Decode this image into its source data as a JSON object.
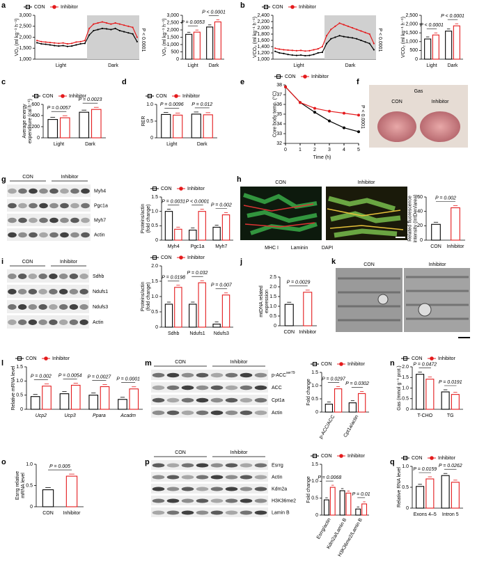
{
  "chart_data": [
    {
      "type": "line",
      "legend": true,
      "ylabel": "VO₂ (ml kg⁻¹ h⁻¹)",
      "x_labels": [
        "Light",
        "Dark"
      ],
      "series": [
        {
          "name": "CON",
          "color": "#000000",
          "values": [
            1750,
            1700,
            1680,
            1650,
            1620,
            1600,
            1620,
            1580,
            1600,
            1650,
            1700,
            1720,
            2100,
            2300,
            2350,
            2400,
            2380,
            2350,
            2400,
            2300,
            2250,
            2200,
            2150,
            1800
          ]
        },
        {
          "name": "Inhibitor",
          "color": "#e41a1c",
          "values": [
            1850,
            1800,
            1780,
            1760,
            1740,
            1720,
            1740,
            1700,
            1720,
            1780,
            1800,
            1850,
            2400,
            2600,
            2650,
            2700,
            2650,
            2600,
            2650,
            2600,
            2550,
            2500,
            2450,
            2000
          ]
        }
      ],
      "ylim": [
        1000,
        3000
      ],
      "yticks": [
        {
          "value": 1000,
          "label": "1,000"
        },
        {
          "value": 1500,
          "label": "1,500"
        },
        {
          "value": 2000,
          "label": "2,000"
        },
        {
          "value": 2500,
          "label": "2,500"
        },
        {
          "value": 3000,
          "label": "3,000"
        }
      ],
      "annotation": "P < 0.0001"
    },
    {
      "type": "bar",
      "legend": false,
      "ylabel": "VO₂ (ml kg⁻¹ h⁻¹)",
      "categories": [
        "Light",
        "Dark"
      ],
      "series": [
        {
          "name": "CON",
          "color": "#000000",
          "values": [
            1700,
            2200
          ]
        },
        {
          "name": "Inhibitor",
          "color": "#e41a1c",
          "values": [
            1850,
            2550
          ]
        }
      ],
      "ylim": [
        0,
        3000
      ],
      "yticks": [
        0,
        500,
        {
          "value": 1000,
          "label": "1,000"
        },
        {
          "value": 1500,
          "label": "1,500"
        },
        {
          "value": 2000,
          "label": "2,000"
        },
        {
          "value": 2500,
          "label": "2,500"
        },
        {
          "value": 3000,
          "label": "3,000"
        }
      ],
      "annotations": [
        "P = 0.0053",
        "P < 0.0001"
      ]
    },
    {
      "type": "line",
      "legend": true,
      "ylabel": "VCO₂ (ml kg⁻¹ h⁻¹)",
      "x_labels": [
        "Light",
        "Dark"
      ],
      "series": [
        {
          "name": "CON",
          "color": "#000000",
          "values": [
            1250,
            1200,
            1180,
            1150,
            1130,
            1120,
            1130,
            1110,
            1120,
            1150,
            1200,
            1220,
            1500,
            1650,
            1700,
            1750,
            1720,
            1700,
            1680,
            1650,
            1600,
            1550,
            1500,
            1300
          ]
        },
        {
          "name": "Inhibitor",
          "color": "#e41a1c",
          "values": [
            1350,
            1320,
            1300,
            1290,
            1280,
            1270,
            1280,
            1260,
            1270,
            1300,
            1330,
            1400,
            1750,
            1950,
            2050,
            2150,
            2100,
            2050,
            2000,
            1950,
            1900,
            1850,
            1800,
            1500
          ]
        }
      ],
      "ylim": [
        1000,
        2400
      ],
      "yticks": [
        {
          "value": 1000,
          "label": "1,000"
        },
        {
          "value": 1200,
          "label": "1,200"
        },
        {
          "value": 1400,
          "label": "1,400"
        },
        {
          "value": 1600,
          "label": "1,600"
        },
        {
          "value": 1800,
          "label": "1,800"
        },
        {
          "value": 2000,
          "label": "2,000"
        },
        {
          "value": 2200,
          "label": "2,200"
        },
        {
          "value": 2400,
          "label": "2,400"
        }
      ],
      "annotation": "P < 0.0001"
    },
    {
      "type": "bar",
      "legend": false,
      "ylabel": "VCO₂ (ml kg⁻¹ h⁻¹)",
      "categories": [
        "Light",
        "Dark"
      ],
      "series": [
        {
          "name": "CON",
          "color": "#000000",
          "values": [
            1150,
            1600
          ]
        },
        {
          "name": "Inhibitor",
          "color": "#e41a1c",
          "values": [
            1380,
            1900
          ]
        }
      ],
      "ylim": [
        0,
        2500
      ],
      "yticks": [
        0,
        500,
        {
          "value": 1000,
          "label": "1,000"
        },
        {
          "value": 1500,
          "label": "1,500"
        },
        {
          "value": 2000,
          "label": "2,000"
        },
        {
          "value": 2500,
          "label": "2,500"
        }
      ],
      "annotations": [
        "P < 0.0001",
        "P < 0.0001"
      ]
    },
    {
      "type": "bar",
      "legend": true,
      "ylabel": [
        "Average energy",
        "expenditure (cal h⁻¹)"
      ],
      "categories": [
        "Light",
        "Dark"
      ],
      "series": [
        {
          "name": "CON",
          "color": "#000000",
          "values": [
            330,
            460
          ]
        },
        {
          "name": "Inhibitor",
          "color": "#e41a1c",
          "values": [
            360,
            510
          ]
        }
      ],
      "ylim": [
        0,
        600
      ],
      "yticks": [
        0,
        200,
        400,
        600
      ],
      "annotations": [
        "P = 0.0057",
        "P = 0.0023"
      ]
    },
    {
      "type": "bar",
      "legend": true,
      "ylabel": "RER",
      "categories": [
        "Light",
        "Dark"
      ],
      "series": [
        {
          "name": "CON",
          "color": "#000000",
          "values": [
            0.7,
            0.71
          ]
        },
        {
          "name": "Inhibitor",
          "color": "#e41a1c",
          "values": [
            0.68,
            0.69
          ]
        }
      ],
      "ylim": [
        0,
        1
      ],
      "yticks": [
        0,
        0.5,
        {
          "value": 1,
          "label": "1.0"
        }
      ],
      "annotations": [
        "P = 0.0096",
        "P = 0.012"
      ]
    },
    {
      "type": "line",
      "legend": true,
      "ylabel": "Core body temp. (°C)",
      "xlabel": "Time (h)",
      "x": [
        0,
        1,
        2,
        3,
        4,
        5
      ],
      "series": [
        {
          "name": "CON",
          "color": "#000000",
          "values": [
            37.8,
            36.2,
            35.2,
            34.3,
            33.6,
            33.2
          ]
        },
        {
          "name": "Inhibitor",
          "color": "#e41a1c",
          "values": [
            37.8,
            36.2,
            35.6,
            35.3,
            35.1,
            34.9
          ]
        }
      ],
      "xlim": [
        0,
        5
      ],
      "xticks": [
        0,
        1,
        2,
        3,
        4,
        5
      ],
      "ylim": [
        32,
        38
      ],
      "yticks": [
        32,
        33,
        34,
        35,
        36,
        37,
        38
      ],
      "annotation": "P < 0.0001"
    },
    {
      "type": "bar",
      "legend": true,
      "ylabel": [
        "Proteins/actin",
        "(fold change)"
      ],
      "categories": [
        "Myh4",
        "Pgc1a",
        "Myh7"
      ],
      "series": [
        {
          "name": "CON",
          "color": "#000000",
          "values": [
            1.0,
            0.35,
            0.45
          ]
        },
        {
          "name": "Inhibitor",
          "color": "#e41a1c",
          "values": [
            0.38,
            1.0,
            0.88
          ]
        }
      ],
      "ylim": [
        0,
        1.5
      ],
      "yticks": [
        0,
        0.5,
        {
          "value": 1,
          "label": "1.0"
        },
        1.5
      ],
      "annotations": [
        "P = 0.0031",
        "P < 0.0001",
        "P = 0.002"
      ]
    },
    {
      "type": "bar",
      "legend": false,
      "ylabel": [
        "Related fluorescence",
        "intensity (IntDen/area)"
      ],
      "categories": [
        "CON",
        "Inhibitor"
      ],
      "values": [
        22,
        45
      ],
      "colors": [
        "#000000",
        "#e41a1c"
      ],
      "ylim": [
        0,
        60
      ],
      "yticks": [
        0,
        20,
        40,
        60
      ],
      "annotation": "P = 0.002"
    },
    {
      "type": "bar",
      "legend": true,
      "ylabel": [
        "Proteins/actin",
        "(fold change)"
      ],
      "categories": [
        "Sdhb",
        "Ndufs1",
        "Ndufs3"
      ],
      "series": [
        {
          "name": "CON",
          "color": "#000000",
          "values": [
            0.75,
            0.75,
            0.1
          ]
        },
        {
          "name": "Inhibitor",
          "color": "#e41a1c",
          "values": [
            1.3,
            1.45,
            1.05
          ]
        }
      ],
      "ylim": [
        0,
        2
      ],
      "yticks": [
        0,
        0.5,
        {
          "value": 1,
          "label": "1.0"
        },
        1.5,
        {
          "value": 2,
          "label": "2.0"
        }
      ],
      "annotations": [
        "P = 0.0198",
        "P = 0.032",
        "P = 0.007"
      ]
    },
    {
      "type": "bar",
      "legend": false,
      "ylabel": [
        "mtDNA related",
        "expression"
      ],
      "categories": [
        "CON",
        "Inhibitor"
      ],
      "values": [
        1.1,
        1.72
      ],
      "colors": [
        "#000000",
        "#e41a1c"
      ],
      "ylim": [
        0,
        2.5
      ],
      "yticks": [
        0,
        0.5,
        {
          "value": 1,
          "label": "1.0"
        },
        1.5,
        {
          "value": 2,
          "label": "2.0"
        },
        2.5
      ],
      "annotation": "P = 0.0029"
    },
    {
      "type": "bar",
      "legend": true,
      "italic_categories": true,
      "ylabel": "Relative mRNA level",
      "categories": [
        "Ucp2",
        "Ucp3",
        "Ppara",
        "Acadm"
      ],
      "series": [
        {
          "name": "CON",
          "color": "#000000",
          "values": [
            0.45,
            0.55,
            0.5,
            0.35
          ]
        },
        {
          "name": "Inhibitor",
          "color": "#e41a1c",
          "values": [
            0.82,
            0.85,
            0.8,
            0.72
          ]
        }
      ],
      "ylim": [
        0,
        1.5
      ],
      "yticks": [
        0,
        0.5,
        {
          "value": 1,
          "label": "1.0"
        },
        1.5
      ],
      "annotations": [
        "P = 0.002",
        "P = 0.0054",
        "P = 0.0027",
        "P = 0.0001"
      ]
    },
    {
      "type": "bar",
      "legend": true,
      "rotate_labels": true,
      "ylabel": "Fold change",
      "categories": [
        "p-ACC/ACC",
        "Cpt1a/actin"
      ],
      "series": [
        {
          "name": "CON",
          "color": "#000000",
          "values": [
            0.3,
            0.35
          ]
        },
        {
          "name": "Inhibitor",
          "color": "#e41a1c",
          "values": [
            0.88,
            0.7
          ]
        }
      ],
      "ylim": [
        0,
        1.5
      ],
      "yticks": [
        0,
        0.5,
        {
          "value": 1,
          "label": "1.0"
        },
        1.5
      ],
      "annotations": [
        "P = 0.0297",
        "P = 0.0302"
      ]
    },
    {
      "type": "bar",
      "legend": true,
      "ylabel": "Gas (mmol g⁻¹ prot.)",
      "categories": [
        "T-CHO",
        "TG"
      ],
      "series": [
        {
          "name": "CON",
          "color": "#000000",
          "values": [
            1.65,
            0.82
          ]
        },
        {
          "name": "Inhibitor",
          "color": "#e41a1c",
          "values": [
            1.42,
            0.7
          ]
        }
      ],
      "ylim": [
        0,
        2
      ],
      "yticks": [
        0,
        0.5,
        {
          "value": 1,
          "label": "1.0"
        },
        1.5,
        {
          "value": 2,
          "label": "2.0"
        }
      ],
      "annotations": [
        "P = 0.0472",
        "P = 0.0191"
      ]
    },
    {
      "type": "bar",
      "legend": false,
      "ylabel": [
        "Esrrg relative",
        "mRNA level"
      ],
      "categories": [
        "CON",
        "Inhibitor"
      ],
      "values": [
        0.4,
        0.72
      ],
      "colors": [
        "#000000",
        "#e41a1c"
      ],
      "ylim": [
        0,
        1
      ],
      "yticks": [
        0,
        0.5,
        {
          "value": 1,
          "label": "1.0"
        }
      ],
      "annotation": "P = 0.005"
    },
    {
      "type": "bar",
      "legend": true,
      "rotate_labels": true,
      "ylabel": "Fold change",
      "categories": [
        "Esrrg/actin",
        "Kdm2a/Lamin B",
        "H3K36me2/Lamin B"
      ],
      "series": [
        {
          "name": "CON",
          "color": "#000000",
          "values": [
            0.45,
            0.72,
            0.18
          ]
        },
        {
          "name": "Inhibitor",
          "color": "#e41a1c",
          "values": [
            0.82,
            0.65,
            0.33
          ]
        }
      ],
      "ylim": [
        0,
        1.5
      ],
      "yticks": [
        0,
        0.5,
        {
          "value": 1,
          "label": "1.0"
        },
        1.5
      ],
      "annotations": [
        "P = 0.0068",
        null,
        "P = 0.01"
      ]
    },
    {
      "type": "bar",
      "legend": true,
      "ylabel": "Relative RNA level",
      "categories": [
        "Exons 4–5",
        "Intron 5"
      ],
      "series": [
        {
          "name": "CON",
          "color": "#000000",
          "values": [
            0.52,
            0.78
          ]
        },
        {
          "name": "Inhibitor",
          "color": "#e41a1c",
          "values": [
            0.7,
            0.62
          ]
        }
      ],
      "ylim": [
        0,
        1
      ],
      "yticks": [
        0,
        0.5,
        {
          "value": 1,
          "label": "1.0"
        }
      ],
      "annotations": [
        "P = 0.0159",
        "P = 0.0262"
      ]
    }
  ],
  "figure": {
    "panel_labels": [
      "a",
      "b",
      "c",
      "d",
      "e",
      "f",
      "g",
      "h",
      "i",
      "j",
      "k",
      "l",
      "m",
      "n",
      "o",
      "p",
      "q"
    ],
    "blots": [
      {
        "groups": [
          "CON",
          "Inhibitor"
        ],
        "rows": [
          "Myh4",
          "Pgc1a",
          "Myh7",
          "Actin"
        ]
      },
      {
        "groups": [
          "CON",
          "Inhibitor"
        ],
        "rows": [
          "Sdhb",
          "Ndufs1",
          "Ndufs3",
          "Actin"
        ]
      },
      {
        "groups": [
          "CON",
          "Inhibitor"
        ],
        "rows": [
          "p-ACC",
          "ACC",
          "Cpt1a",
          "Actin"
        ],
        "sup": "ser79"
      },
      {
        "groups": [
          "CON",
          "Inhibitor"
        ],
        "rows": [
          "Esrrg",
          "Actin",
          "Kdm2a",
          "H3K36me2",
          "Lamin B"
        ]
      }
    ],
    "images": {
      "f": {
        "title": "Gas",
        "labels": [
          "CON",
          "Inhibitor"
        ]
      },
      "h": {
        "labels": [
          "CON",
          "Inhibitor"
        ],
        "stains": [
          "MHC I",
          "Laminin",
          "DAPI"
        ]
      },
      "k": {
        "labels": [
          "CON",
          "Inhibitor"
        ]
      }
    }
  }
}
